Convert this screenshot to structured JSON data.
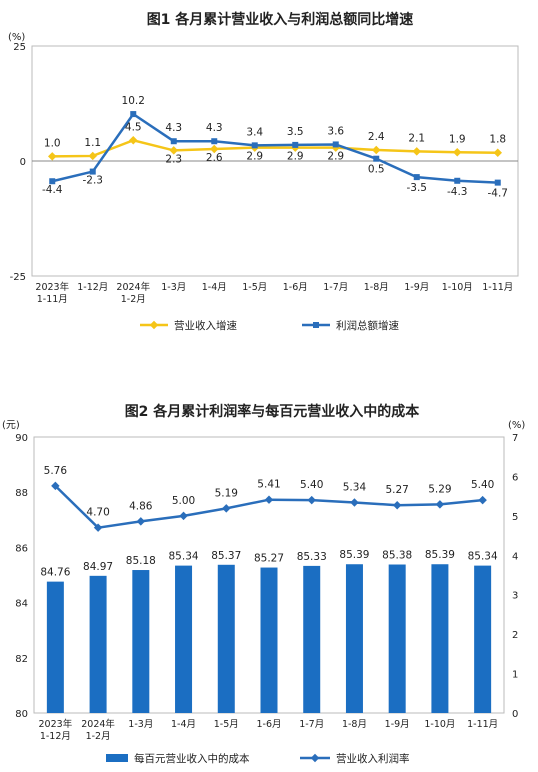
{
  "chart_data": [
    {
      "type": "line",
      "title": "图1  各月累计营业收入与利润总额同比增速",
      "ylabel": "(%)",
      "ylim": [
        -25,
        25
      ],
      "yticks": [
        25,
        0,
        -25
      ],
      "categories": [
        [
          "2023年",
          "1-11月"
        ],
        [
          "1-12月"
        ],
        [
          "2024年",
          "1-2月"
        ],
        [
          "1-3月"
        ],
        [
          "1-4月"
        ],
        [
          "1-5月"
        ],
        [
          "1-6月"
        ],
        [
          "1-7月"
        ],
        [
          "1-8月"
        ],
        [
          "1-9月"
        ],
        [
          "1-10月"
        ],
        [
          "1-11月"
        ]
      ],
      "series": [
        {
          "name": "营业收入增速",
          "color": "#f5c518",
          "values": [
            1.0,
            1.1,
            4.5,
            2.3,
            2.6,
            2.9,
            2.9,
            2.9,
            2.4,
            2.1,
            1.9,
            1.8
          ],
          "labels": [
            "1.0",
            "1.1",
            "4.5",
            "2.3",
            "2.6",
            "2.9",
            "2.9",
            "2.9",
            "2.4",
            "2.1",
            "1.9",
            "1.8"
          ]
        },
        {
          "name": "利润总额增速",
          "color": "#2a6ebb",
          "values": [
            -4.4,
            -2.3,
            10.2,
            4.3,
            4.3,
            3.4,
            3.5,
            3.6,
            0.5,
            -3.5,
            -4.3,
            -4.7
          ],
          "labels": [
            "-4.4",
            "-2.3",
            "10.2",
            "4.3",
            "4.3",
            "3.4",
            "3.5",
            "3.6",
            "0.5",
            "-3.5",
            "-4.3",
            "-4.7"
          ]
        }
      ],
      "legend": "bottom"
    },
    {
      "type": "bar+line",
      "title": "图2  各月累计利润率与每百元营业收入中的成本",
      "ylabel_left": "(元)",
      "ylabel_right": "(%)",
      "ylim_left": [
        80,
        90
      ],
      "yticks_left": [
        90,
        88,
        86,
        84,
        82,
        80
      ],
      "ylim_right": [
        0,
        7
      ],
      "yticks_right": [
        7,
        6,
        5,
        4,
        3,
        2,
        1,
        0
      ],
      "categories": [
        [
          "2023年",
          "1-12月"
        ],
        [
          "2024年",
          "1-2月"
        ],
        [
          "1-3月"
        ],
        [
          "1-4月"
        ],
        [
          "1-5月"
        ],
        [
          "1-6月"
        ],
        [
          "1-7月"
        ],
        [
          "1-8月"
        ],
        [
          "1-9月"
        ],
        [
          "1-10月"
        ],
        [
          "1-11月"
        ]
      ],
      "series": [
        {
          "name": "每百元营业收入中的成本",
          "type": "bar",
          "axis": "left",
          "color": "#1b6ec2",
          "values": [
            84.76,
            84.97,
            85.18,
            85.34,
            85.37,
            85.27,
            85.33,
            85.39,
            85.38,
            85.39,
            85.34
          ],
          "labels": [
            "84.76",
            "84.97",
            "85.18",
            "85.34",
            "85.37",
            "85.27",
            "85.33",
            "85.39",
            "85.38",
            "85.39",
            "85.34"
          ]
        },
        {
          "name": "营业收入利润率",
          "type": "line",
          "axis": "right",
          "color": "#2a6ebb",
          "values": [
            5.76,
            4.7,
            4.86,
            5.0,
            5.19,
            5.41,
            5.4,
            5.34,
            5.27,
            5.29,
            5.4
          ],
          "labels": [
            "5.76",
            "4.70",
            "4.86",
            "5.00",
            "5.19",
            "5.41",
            "5.40",
            "5.34",
            "5.27",
            "5.29",
            "5.40"
          ]
        }
      ],
      "legend": "bottom"
    }
  ]
}
